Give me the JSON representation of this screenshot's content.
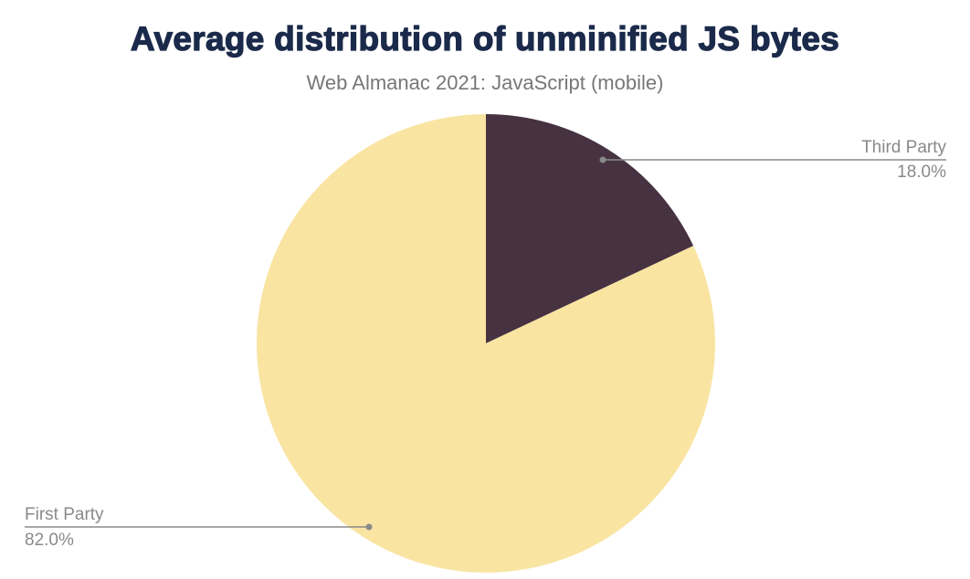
{
  "chart_data": {
    "type": "pie",
    "title": "Average distribution of unminified JS bytes",
    "subtitle": "Web Almanac 2021: JavaScript (mobile)",
    "slices": [
      {
        "label": "Third Party",
        "value": 18.0,
        "display": "18.0%",
        "color": "#463241"
      },
      {
        "label": "First Party",
        "value": 82.0,
        "display": "82.0%",
        "color": "#f9e4a2"
      }
    ]
  }
}
